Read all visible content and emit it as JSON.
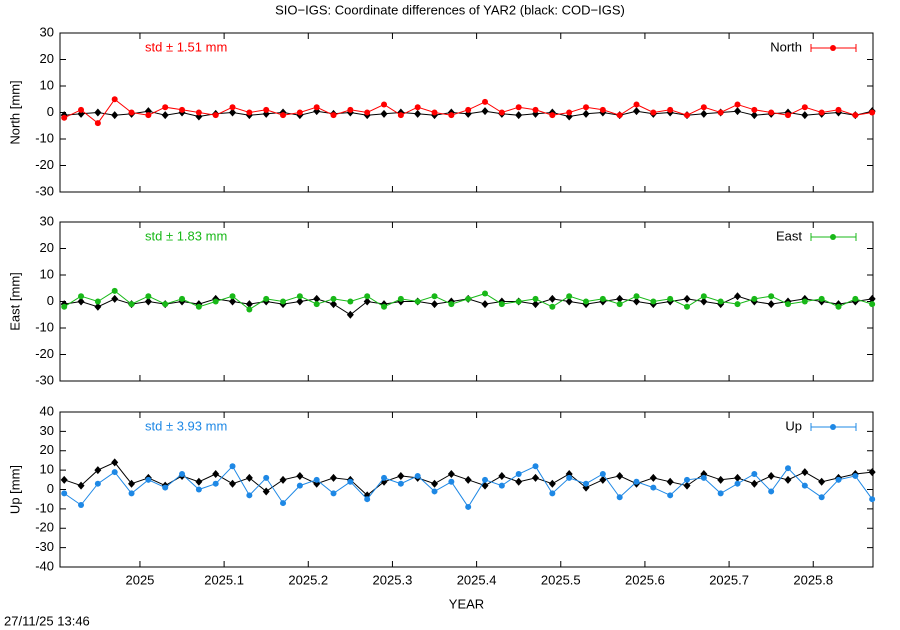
{
  "title": "SIO−IGS: Coordinate differences of YAR2 (black: COD−IGS)",
  "timestamp": "27/11/25 13:46",
  "chart_data": [
    {
      "type": "line",
      "ylabel": "North [mm]",
      "annotation": "std ± 1.51 mm",
      "x": [
        2024.91,
        2024.93,
        2024.95,
        2024.97,
        2024.99,
        2025.01,
        2025.03,
        2025.05,
        2025.07,
        2025.09,
        2025.11,
        2025.13,
        2025.15,
        2025.17,
        2025.19,
        2025.21,
        2025.23,
        2025.25,
        2025.27,
        2025.29,
        2025.31,
        2025.33,
        2025.35,
        2025.37,
        2025.39,
        2025.41,
        2025.43,
        2025.45,
        2025.47,
        2025.49,
        2025.51,
        2025.53,
        2025.55,
        2025.57,
        2025.59,
        2025.61,
        2025.63,
        2025.65,
        2025.67,
        2025.69,
        2025.71,
        2025.73,
        2025.75,
        2025.77,
        2025.79,
        2025.81,
        2025.83,
        2025.85,
        2025.87
      ],
      "xlim": [
        2024.905,
        2025.871
      ],
      "xticks": [
        2025,
        2025.1,
        2025.2,
        2025.3,
        2025.4,
        2025.5,
        2025.6,
        2025.7,
        2025.8
      ],
      "ylim": [
        -30,
        30
      ],
      "yticks": [
        -30,
        -20,
        -10,
        0,
        10,
        20,
        30
      ],
      "series": [
        {
          "color": "#000000",
          "values": [
            -1,
            -0.5,
            0,
            -1,
            -0.5,
            0.5,
            -1,
            0,
            -1.5,
            -0.5,
            0,
            -1,
            -0.5,
            0,
            -1,
            0.5,
            -0.5,
            0,
            -1,
            -0.5,
            0,
            -0.5,
            -1,
            0,
            -0.5,
            0.5,
            -0.5,
            -1,
            -0.5,
            0,
            -1.5,
            -0.5,
            0,
            -1,
            0.5,
            -0.5,
            0,
            -1,
            -0.5,
            0,
            0.5,
            -1,
            -0.5,
            0,
            -1,
            -0.5,
            0,
            -1,
            0.5
          ]
        },
        {
          "name": "North",
          "color": "#ff0000",
          "values": [
            -2,
            1,
            -4,
            5,
            0,
            -1,
            2,
            1,
            0,
            -1,
            2,
            0,
            1,
            -1,
            0,
            2,
            -1,
            1,
            0,
            3,
            -1,
            2,
            0,
            -1,
            1,
            4,
            0,
            2,
            1,
            -1,
            0,
            2,
            1,
            -1,
            3,
            0,
            1,
            -1,
            2,
            0,
            3,
            1,
            0,
            -1,
            2,
            0,
            1,
            -1,
            0
          ]
        }
      ]
    },
    {
      "type": "line",
      "ylabel": "East [mm]",
      "annotation": "std ± 1.83 mm",
      "x": [
        2024.91,
        2024.93,
        2024.95,
        2024.97,
        2024.99,
        2025.01,
        2025.03,
        2025.05,
        2025.07,
        2025.09,
        2025.11,
        2025.13,
        2025.15,
        2025.17,
        2025.19,
        2025.21,
        2025.23,
        2025.25,
        2025.27,
        2025.29,
        2025.31,
        2025.33,
        2025.35,
        2025.37,
        2025.39,
        2025.41,
        2025.43,
        2025.45,
        2025.47,
        2025.49,
        2025.51,
        2025.53,
        2025.55,
        2025.57,
        2025.59,
        2025.61,
        2025.63,
        2025.65,
        2025.67,
        2025.69,
        2025.71,
        2025.73,
        2025.75,
        2025.77,
        2025.79,
        2025.81,
        2025.83,
        2025.85,
        2025.87
      ],
      "xlim": [
        2024.905,
        2025.871
      ],
      "xticks": [
        2025,
        2025.1,
        2025.2,
        2025.3,
        2025.4,
        2025.5,
        2025.6,
        2025.7,
        2025.8
      ],
      "ylim": [
        -30,
        30
      ],
      "yticks": [
        -30,
        -20,
        -10,
        0,
        10,
        20,
        30
      ],
      "series": [
        {
          "color": "#000000",
          "values": [
            -1,
            0,
            -2,
            1,
            -1,
            0,
            -1,
            0,
            -1,
            1,
            0,
            -1,
            0,
            -1,
            0,
            1,
            -1,
            -5,
            0,
            -1,
            0,
            0,
            -1,
            0,
            1,
            -1,
            0,
            0,
            -1,
            1,
            0,
            -1,
            0,
            1,
            0,
            -1,
            0,
            1,
            0,
            -1,
            2,
            0,
            -1,
            0,
            1,
            0,
            -1,
            0,
            1
          ]
        },
        {
          "name": "East",
          "color": "#18b818",
          "values": [
            -2,
            2,
            0,
            4,
            -1,
            2,
            -1,
            1,
            -2,
            0,
            2,
            -3,
            1,
            0,
            2,
            -1,
            1,
            0,
            2,
            -2,
            1,
            0,
            2,
            -1,
            1,
            3,
            -1,
            0,
            1,
            -2,
            2,
            0,
            1,
            -1,
            2,
            0,
            1,
            -2,
            2,
            0,
            -1,
            1,
            2,
            -1,
            0,
            1,
            -2,
            1,
            -1
          ]
        }
      ]
    },
    {
      "type": "line",
      "ylabel": "Up [mm]",
      "xlabel": "YEAR",
      "annotation": "std ± 3.93 mm",
      "x": [
        2024.91,
        2024.93,
        2024.95,
        2024.97,
        2024.99,
        2025.01,
        2025.03,
        2025.05,
        2025.07,
        2025.09,
        2025.11,
        2025.13,
        2025.15,
        2025.17,
        2025.19,
        2025.21,
        2025.23,
        2025.25,
        2025.27,
        2025.29,
        2025.31,
        2025.33,
        2025.35,
        2025.37,
        2025.39,
        2025.41,
        2025.43,
        2025.45,
        2025.47,
        2025.49,
        2025.51,
        2025.53,
        2025.55,
        2025.57,
        2025.59,
        2025.61,
        2025.63,
        2025.65,
        2025.67,
        2025.69,
        2025.71,
        2025.73,
        2025.75,
        2025.77,
        2025.79,
        2025.81,
        2025.83,
        2025.85,
        2025.87
      ],
      "xlim": [
        2024.905,
        2025.871
      ],
      "xticks": [
        2025,
        2025.1,
        2025.2,
        2025.3,
        2025.4,
        2025.5,
        2025.6,
        2025.7,
        2025.8
      ],
      "ylim": [
        -40,
        40
      ],
      "yticks": [
        -40,
        -30,
        -20,
        -10,
        0,
        10,
        20,
        30,
        40
      ],
      "series": [
        {
          "color": "#000000",
          "values": [
            5,
            2,
            10,
            14,
            3,
            6,
            2,
            7,
            4,
            8,
            3,
            6,
            -1,
            5,
            7,
            3,
            6,
            5,
            -3,
            4,
            7,
            6,
            3,
            8,
            5,
            2,
            7,
            4,
            6,
            3,
            8,
            1,
            5,
            7,
            3,
            6,
            4,
            2,
            8,
            5,
            6,
            3,
            7,
            5,
            9,
            4,
            6,
            8,
            9
          ]
        },
        {
          "name": "Up",
          "color": "#1e88e5",
          "values": [
            -2,
            -8,
            3,
            9,
            -2,
            5,
            1,
            8,
            0,
            3,
            12,
            -3,
            6,
            -7,
            2,
            5,
            -2,
            4,
            -5,
            6,
            3,
            7,
            -1,
            4,
            -9,
            5,
            2,
            8,
            12,
            -2,
            6,
            3,
            8,
            -4,
            4,
            1,
            -3,
            5,
            6,
            -2,
            3,
            8,
            -1,
            11,
            2,
            -4,
            5,
            7,
            -5
          ]
        }
      ]
    }
  ]
}
